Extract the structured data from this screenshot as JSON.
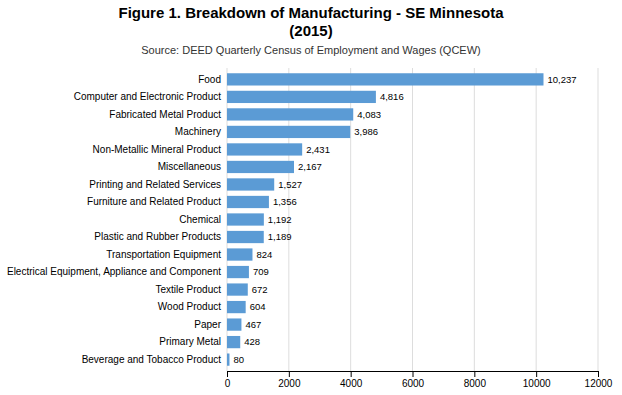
{
  "chart_data": {
    "type": "bar",
    "orientation": "horizontal",
    "title": "Figure 1. Breakdown of Manufacturing - SE Minnesota\n(2015)",
    "subtitle": "Source: DEED Quarterly Census of Employment and Wages (QCEW)",
    "categories": [
      "Food",
      "Computer and Electronic Product",
      "Fabricated Metal Product",
      "Machinery",
      "Non-Metallic Mineral Product",
      "Miscellaneous",
      "Printing and Related Services",
      "Furniture and Related Product",
      "Chemical",
      "Plastic and Rubber Products",
      "Transportation Equipment",
      "Electrical Equipment, Appliance and Component",
      "Textile Product",
      "Wood Product",
      "Paper",
      "Primary Metal",
      "Beverage and Tobacco Product"
    ],
    "values": [
      10237,
      4816,
      4083,
      3986,
      2431,
      2167,
      1527,
      1356,
      1192,
      1189,
      824,
      709,
      672,
      604,
      467,
      428,
      80
    ],
    "value_labels": [
      "10,237",
      "4,816",
      "4,083",
      "3,986",
      "2,431",
      "2,167",
      "1,527",
      "1,356",
      "1,192",
      "1,189",
      "824",
      "709",
      "672",
      "604",
      "467",
      "428",
      "80"
    ],
    "data_labels": true,
    "color": "#5b9bd5",
    "xlim": [
      0,
      12000
    ],
    "xticks": [
      0,
      2000,
      4000,
      6000,
      8000,
      10000,
      12000
    ],
    "grid": true
  }
}
